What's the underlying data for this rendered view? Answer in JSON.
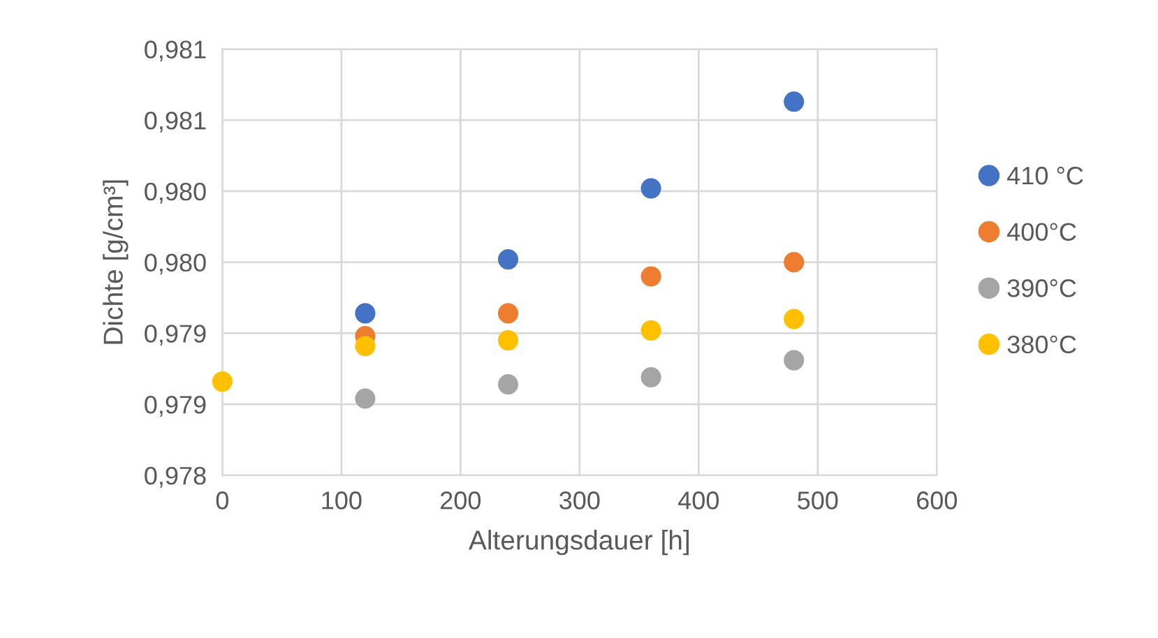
{
  "chart_data": {
    "type": "scatter",
    "xlabel": "Alterungsdauer [h]",
    "ylabel": "Dichte [g/cm³]",
    "x": [
      0,
      120,
      240,
      360,
      480
    ],
    "series": [
      {
        "name": "410 °C",
        "color": "#4472c4",
        "values": [
          null,
          0.97914,
          0.97952,
          0.98002,
          0.98063
        ]
      },
      {
        "name": "400°C",
        "color": "#ed7d31",
        "values": [
          null,
          0.97898,
          0.97914,
          0.9794,
          0.9795
        ]
      },
      {
        "name": "390°C",
        "color": "#a5a5a5",
        "values": [
          null,
          0.97854,
          0.97864,
          0.97869,
          0.97881
        ]
      },
      {
        "name": "380°C",
        "color": "#ffc000",
        "values": [
          0.97866,
          0.97891,
          0.97895,
          0.97902,
          0.9791
        ]
      }
    ],
    "xlim": [
      0,
      600
    ],
    "xticks": [
      0,
      100,
      200,
      300,
      400,
      500,
      600
    ],
    "ylim": [
      0.978,
      0.981
    ],
    "yticks": [
      {
        "value": 0.978,
        "label": "0,978"
      },
      {
        "value": 0.9785,
        "label": "0,979"
      },
      {
        "value": 0.979,
        "label": "0,979"
      },
      {
        "value": 0.9795,
        "label": "0,980"
      },
      {
        "value": 0.98,
        "label": "0,980"
      },
      {
        "value": 0.9805,
        "label": "0,981"
      },
      {
        "value": 0.981,
        "label": "0,981"
      }
    ],
    "grid": true,
    "legend": "right",
    "marker": "circle"
  }
}
